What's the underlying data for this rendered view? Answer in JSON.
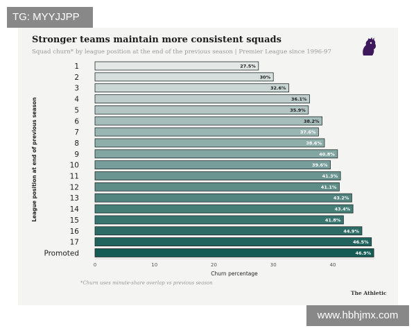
{
  "watermarks": {
    "top_left": "TG: MYYJJPP",
    "bottom_right": "www.hbhjmx.com"
  },
  "colors": {
    "bar_light": "#e3e7e6",
    "bar_dark": "#155c55",
    "bar_stroke": "#1f2a29",
    "card_bg": "#f4f4f2"
  },
  "logo": {
    "icon": "premier-league-lion-icon",
    "color": "#3d195b"
  },
  "source": "The Athletic",
  "footnote": "*Churn uses minute-share overlap vs previous season",
  "chart_data": {
    "type": "bar",
    "orientation": "horizontal",
    "title": "Stronger teams maintain more consistent squads",
    "subtitle": "Squad churn* by league position at the end of the previous season | Premier League since 1996-97",
    "xlabel": "Churn percentage",
    "ylabel": "League position at end of previous season",
    "xlim": [
      0,
      47
    ],
    "xticks": [
      0,
      10,
      20,
      30,
      40
    ],
    "grid": false,
    "legend": "none",
    "categories": [
      "1",
      "2",
      "3",
      "4",
      "5",
      "6",
      "7",
      "8",
      "9",
      "10",
      "11",
      "12",
      "13",
      "14",
      "15",
      "16",
      "17",
      "Promoted"
    ],
    "values": [
      27.5,
      30,
      32.6,
      36.1,
      35.9,
      38.2,
      37.6,
      38.6,
      40.8,
      39.6,
      41.3,
      41.1,
      43.2,
      43.4,
      41.8,
      44.9,
      46.5,
      46.9
    ],
    "data_labels": [
      "27.5%",
      "30%",
      "32.6%",
      "36.1%",
      "35.9%",
      "38.2%",
      "37.6%",
      "38.6%",
      "40.8%",
      "39.6%",
      "41.3%",
      "41.1%",
      "43.2%",
      "43.4%",
      "41.8%",
      "44.9%",
      "46.5%",
      "46.9%"
    ]
  }
}
